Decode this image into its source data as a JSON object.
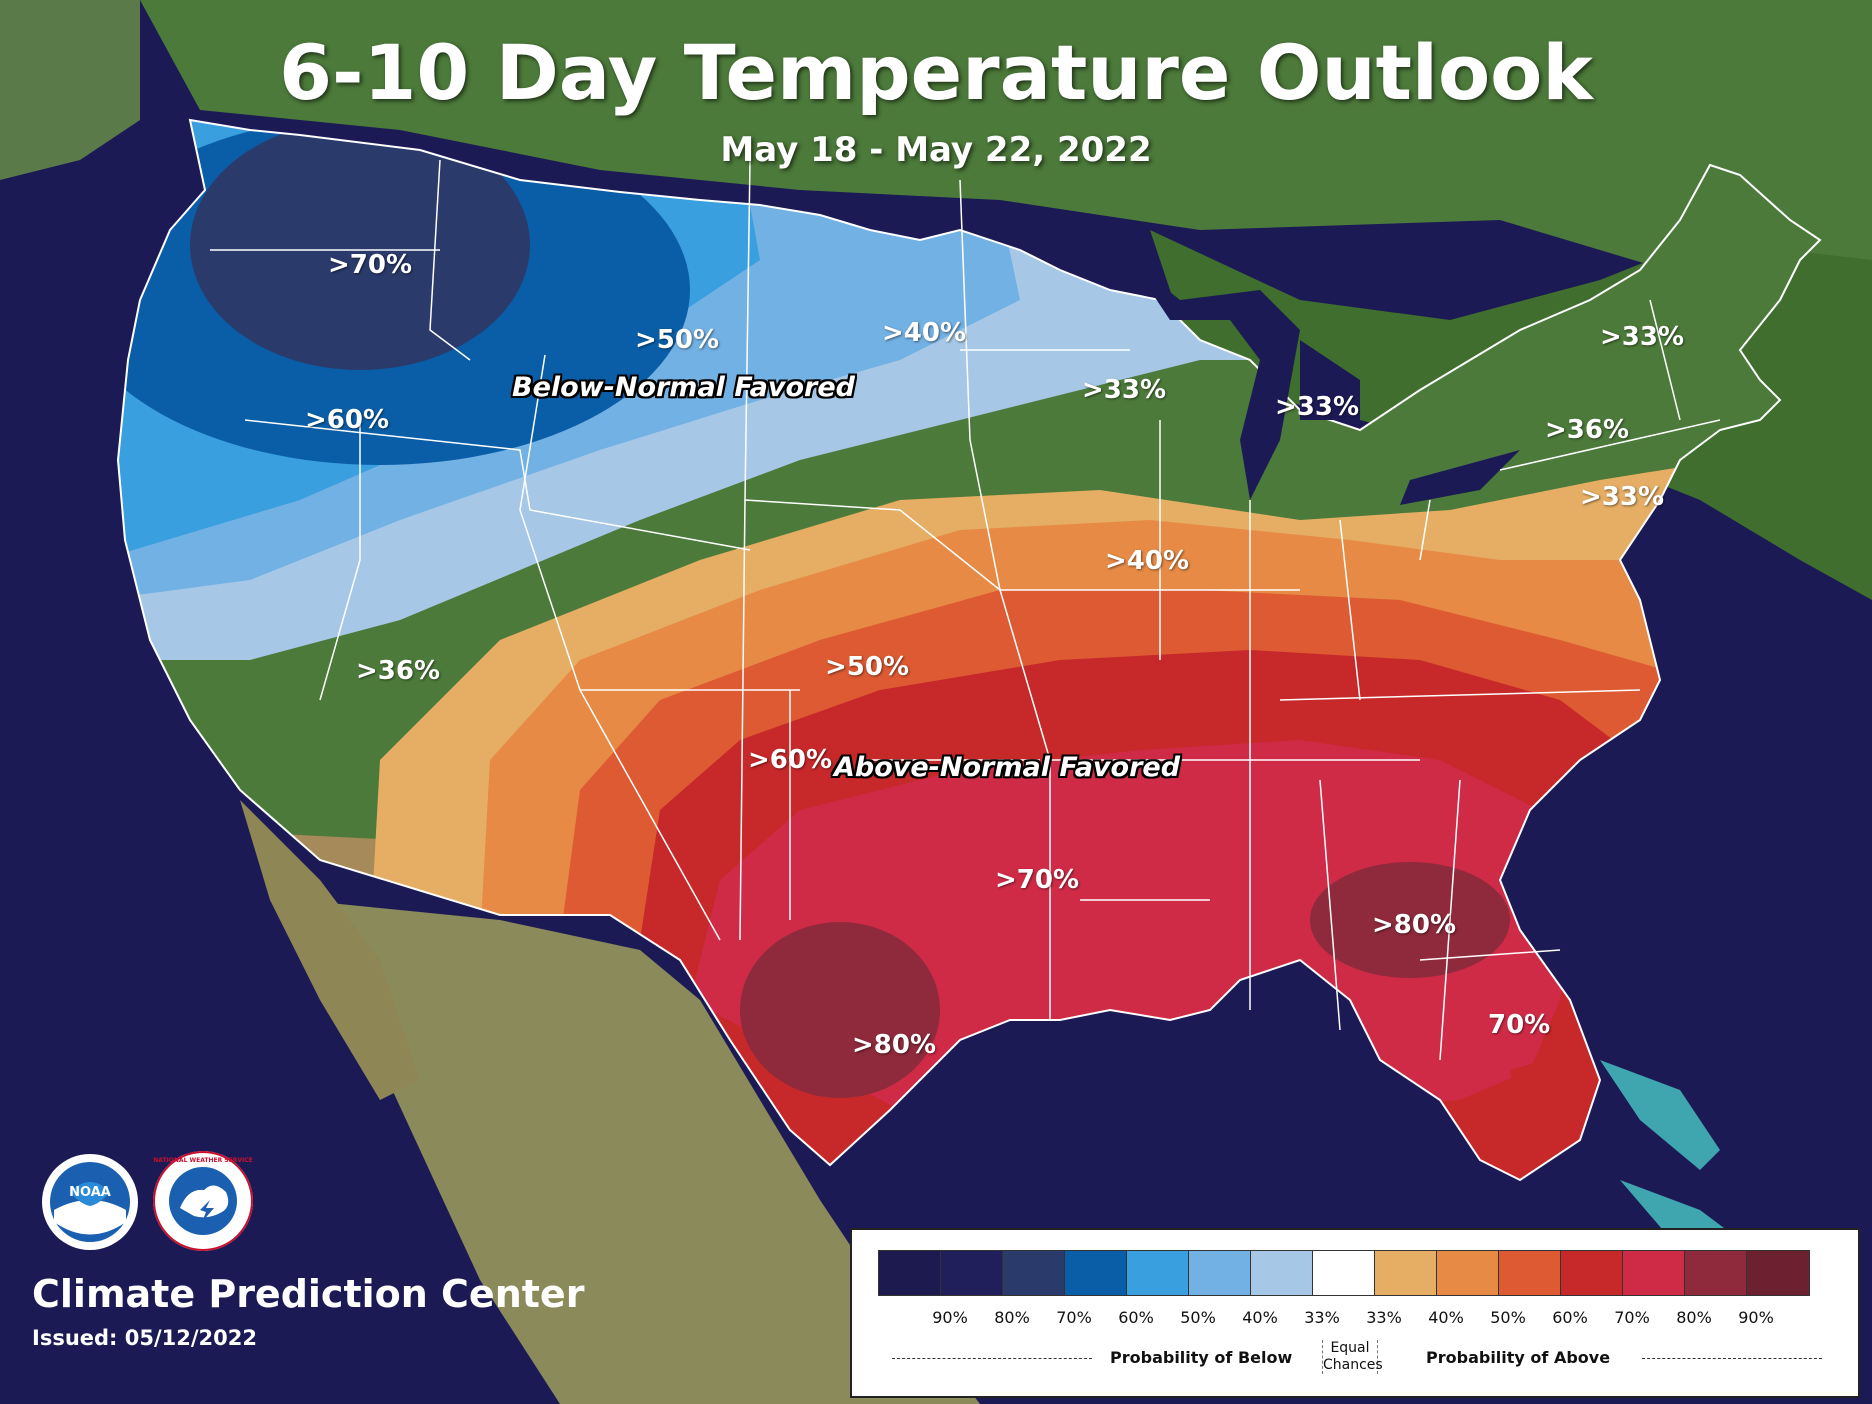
{
  "title": "6-10 Day Temperature Outlook",
  "date_range": "May 18 - May 22, 2022",
  "regions": {
    "below_favored": "Below-Normal Favored",
    "above_favored": "Above-Normal Favored"
  },
  "contour_labels": [
    ">70%",
    ">60%",
    ">50%",
    ">40%",
    ">33%",
    ">33%",
    ">33%",
    ">36%",
    ">33%",
    ">40%",
    ">36%",
    ">50%",
    ">60%",
    ">70%",
    ">80%",
    ">80%",
    "70%"
  ],
  "legend": {
    "colors": [
      "#1c1a4f",
      "#211e5c",
      "#2a3a6b",
      "#0a5ea8",
      "#3a9fde",
      "#72b1e4",
      "#a6c8e6",
      "#ffffff",
      "#e5ae64",
      "#e68a45",
      "#dd5a32",
      "#c7282a",
      "#cf2b47",
      "#8e2a3b",
      "#6d2030"
    ],
    "ticks": [
      "90%",
      "80%",
      "70%",
      "60%",
      "50%",
      "40%",
      "33%",
      "33%",
      "40%",
      "50%",
      "60%",
      "70%",
      "80%",
      "90%"
    ],
    "below_label": "Probability of Below",
    "equal_label_1": "Equal",
    "equal_label_2": "Chances",
    "above_label": "Probability of Above"
  },
  "footer": {
    "org": "Climate Prediction Center",
    "issued": "Issued: 05/12/2022",
    "noaa_text": "NOAA",
    "nws_text": "NATIONAL WEATHER SERVICE"
  }
}
